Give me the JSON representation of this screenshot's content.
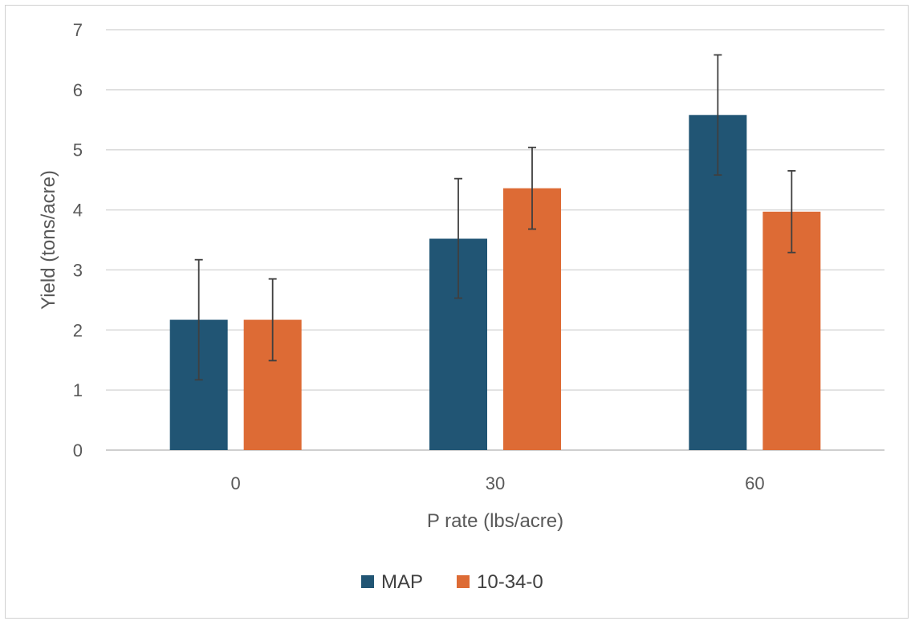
{
  "chart_data": {
    "type": "bar",
    "title": "",
    "xlabel": "P rate (lbs/acre)",
    "ylabel": "Yield (tons/acre)",
    "categories": [
      "0",
      "30",
      "60"
    ],
    "ylim": [
      0,
      7
    ],
    "yticks": [
      "0",
      "1",
      "2",
      "3",
      "4",
      "5",
      "6",
      "7"
    ],
    "grid": true,
    "legend_position": "bottom",
    "series": [
      {
        "name": "MAP",
        "color": "#215574",
        "values": [
          2.17,
          3.52,
          5.58
        ],
        "error_low": [
          1.17,
          2.53,
          4.58
        ],
        "error_high": [
          3.17,
          4.52,
          6.58
        ]
      },
      {
        "name": "10-34-0",
        "color": "#DD6B35",
        "values": [
          2.17,
          4.36,
          3.97
        ],
        "error_low": [
          1.49,
          3.68,
          3.29
        ],
        "error_high": [
          2.85,
          5.04,
          4.65
        ]
      }
    ]
  }
}
